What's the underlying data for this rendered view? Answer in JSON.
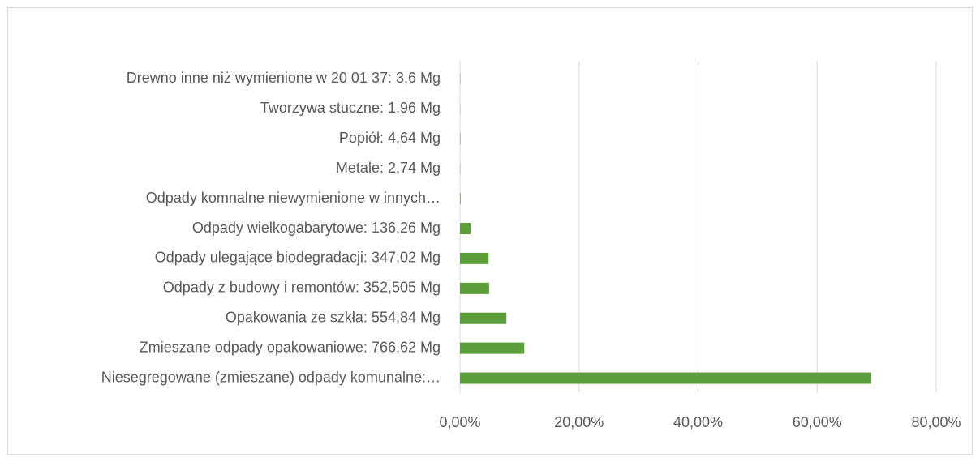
{
  "chart_data": {
    "type": "bar",
    "orientation": "horizontal",
    "categories": [
      "Drewno  inne niż wymienione w 20 01 37: 3,6 Mg",
      "Tworzywa stuczne: 1,96 Mg",
      "Popiół: 4,64 Mg",
      "Metale: 2,74 Mg",
      "Odpady komnalne niewymienione w innych…",
      "Odpady wielkogabarytowe: 136,26 Mg",
      "Odpady ulegające biodegradacji: 347,02 Mg",
      "Odpady z budowy i remontów: 352,505  Mg",
      "Opakowania ze szkła: 554,84 Mg",
      "Zmieszane odpady opakowaniowe: 766,62 Mg",
      "Niesegregowane (zmieszane) odpady komunalne:…"
    ],
    "values": [
      0.05,
      0.03,
      0.07,
      0.04,
      0.1,
      1.8,
      4.8,
      4.9,
      7.8,
      10.8,
      69.1
    ],
    "color": "#5b9e3a",
    "xlim": [
      0,
      80
    ],
    "xticks": [
      {
        "value": 0,
        "label": "0,00%"
      },
      {
        "value": 20,
        "label": "20,00%"
      },
      {
        "value": 40,
        "label": "40,00%"
      },
      {
        "value": 60,
        "label": "60,00%"
      },
      {
        "value": 80,
        "label": "80,00%"
      }
    ],
    "grid": true
  }
}
